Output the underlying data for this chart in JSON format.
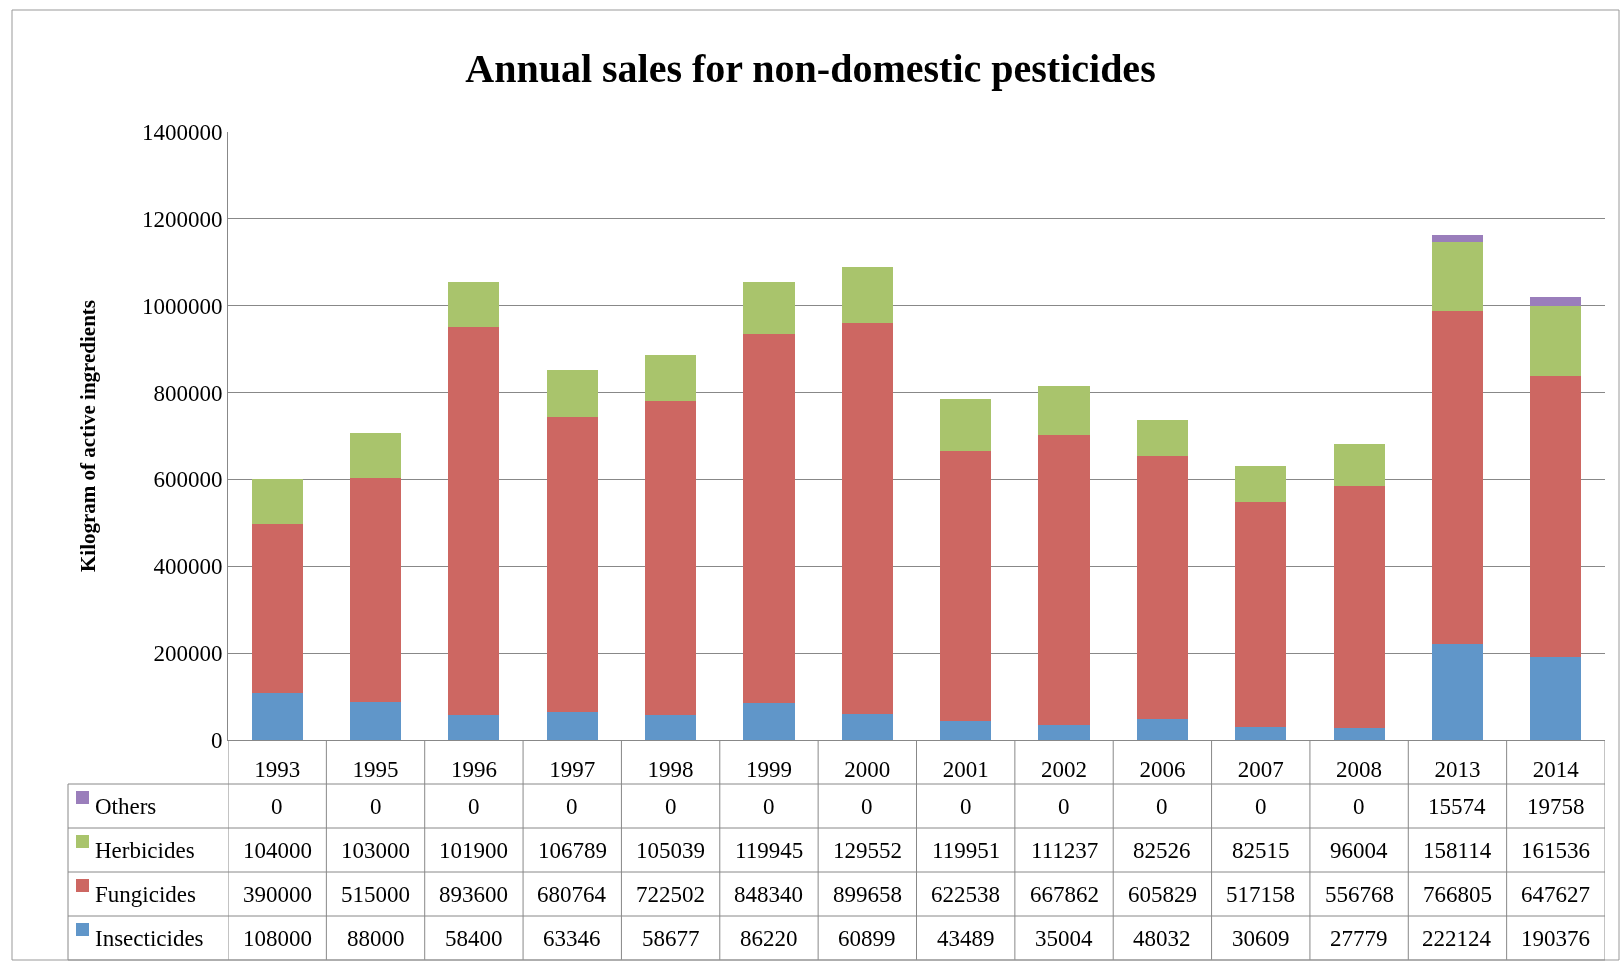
{
  "chart_data": {
    "type": "bar",
    "stacked": true,
    "title": "Annual sales for non-domestic pesticides",
    "ylabel": "Kilogram of active ingredients",
    "categories": [
      "1993",
      "1995",
      "1996",
      "1997",
      "1998",
      "1999",
      "2000",
      "2001",
      "2002",
      "2006",
      "2007",
      "2008",
      "2013",
      "2014"
    ],
    "series": [
      {
        "name": "Insecticides",
        "color": "#6096c9",
        "values": [
          108000,
          88000,
          58400,
          63346,
          58677,
          86220,
          60899,
          43489,
          35004,
          48032,
          30609,
          27779,
          222124,
          190376
        ]
      },
      {
        "name": "Fungicides",
        "color": "#cd6762",
        "values": [
          390000,
          515000,
          893600,
          680764,
          722502,
          848340,
          899658,
          622538,
          667862,
          605829,
          517158,
          556768,
          766805,
          647627
        ]
      },
      {
        "name": "Herbicides",
        "color": "#a9c46c",
        "values": [
          104000,
          103000,
          101900,
          106789,
          105039,
          119945,
          129552,
          119951,
          111237,
          82526,
          82515,
          96004,
          158114,
          161536
        ]
      },
      {
        "name": "Others",
        "color": "#9a7ebb",
        "values": [
          0,
          0,
          0,
          0,
          0,
          0,
          0,
          0,
          0,
          0,
          0,
          0,
          15574,
          19758
        ]
      }
    ],
    "ylim": [
      0,
      1400000
    ],
    "yticks": [
      0,
      200000,
      400000,
      600000,
      800000,
      1000000,
      1200000,
      1400000
    ],
    "grid": "y",
    "legend": "bottom",
    "data_labels": true
  }
}
